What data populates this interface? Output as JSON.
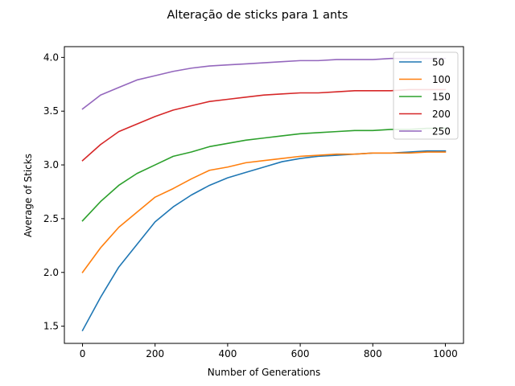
{
  "chart_data": {
    "type": "line",
    "title": "Alteração de sticks para 1 ants",
    "xlabel": "Number of Generations",
    "ylabel": "Average of Sticks",
    "xlim": [
      -50,
      1050
    ],
    "ylim": [
      1.34,
      4.1
    ],
    "xticks": [
      0,
      200,
      400,
      600,
      800,
      1000
    ],
    "yticks": [
      1.5,
      2.0,
      2.5,
      3.0,
      3.5,
      4.0
    ],
    "xtick_labels": [
      "0",
      "200",
      "400",
      "600",
      "800",
      "1000"
    ],
    "ytick_labels": [
      "1.5",
      "2.0",
      "2.5",
      "3.0",
      "3.5",
      "4.0"
    ],
    "grid": false,
    "legend": "top-right",
    "x": [
      0,
      50,
      100,
      150,
      200,
      250,
      300,
      350,
      400,
      450,
      500,
      550,
      600,
      650,
      700,
      750,
      800,
      850,
      900,
      950,
      1000
    ],
    "series": [
      {
        "name": "50",
        "color": "#1f77b4",
        "values": [
          1.46,
          1.77,
          2.05,
          2.26,
          2.47,
          2.61,
          2.72,
          2.81,
          2.88,
          2.93,
          2.98,
          3.03,
          3.06,
          3.08,
          3.09,
          3.1,
          3.11,
          3.11,
          3.12,
          3.13,
          3.13
        ]
      },
      {
        "name": "100",
        "color": "#ff7f0e",
        "values": [
          2.0,
          2.23,
          2.42,
          2.56,
          2.7,
          2.78,
          2.87,
          2.95,
          2.98,
          3.02,
          3.04,
          3.06,
          3.08,
          3.09,
          3.1,
          3.1,
          3.11,
          3.11,
          3.11,
          3.12,
          3.12
        ]
      },
      {
        "name": "150",
        "color": "#2ca02c",
        "values": [
          2.48,
          2.66,
          2.81,
          2.92,
          3.0,
          3.08,
          3.12,
          3.17,
          3.2,
          3.23,
          3.25,
          3.27,
          3.29,
          3.3,
          3.31,
          3.32,
          3.32,
          3.33,
          3.33,
          3.34,
          3.34
        ]
      },
      {
        "name": "200",
        "color": "#d62728",
        "values": [
          3.04,
          3.19,
          3.31,
          3.38,
          3.45,
          3.51,
          3.55,
          3.59,
          3.61,
          3.63,
          3.65,
          3.66,
          3.67,
          3.67,
          3.68,
          3.69,
          3.69,
          3.69,
          3.7,
          3.7,
          3.7
        ]
      },
      {
        "name": "250",
        "color": "#9467bd",
        "values": [
          3.52,
          3.65,
          3.72,
          3.79,
          3.83,
          3.87,
          3.9,
          3.92,
          3.93,
          3.94,
          3.95,
          3.96,
          3.97,
          3.97,
          3.98,
          3.98,
          3.98,
          3.99,
          3.99,
          3.99,
          3.99
        ]
      }
    ]
  }
}
